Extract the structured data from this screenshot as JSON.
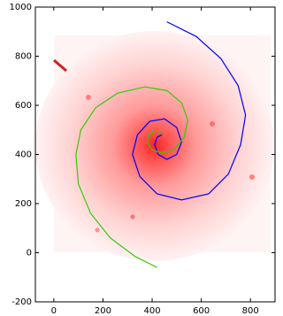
{
  "chart_data": {
    "type": "line",
    "xlim": [
      -75,
      900
    ],
    "ylim": [
      -200,
      1000
    ],
    "xticks": [
      0,
      200,
      400,
      600,
      800
    ],
    "yticks": [
      -200,
      0,
      200,
      400,
      600,
      800,
      1000
    ],
    "series": [
      {
        "color": "#0000ff",
        "x": [
          460,
          580,
          680,
          750,
          780,
          760,
          710,
          630,
          520,
          420,
          350,
          320,
          340,
          390,
          450,
          500,
          520,
          500,
          460,
          425,
          410,
          420,
          440
        ],
        "values": [
          940,
          880,
          790,
          680,
          560,
          440,
          320,
          240,
          215,
          240,
          310,
          400,
          480,
          535,
          545,
          510,
          450,
          400,
          380,
          400,
          440,
          470,
          480
        ]
      },
      {
        "color": "#33cc00",
        "x": [
          420,
          330,
          230,
          150,
          100,
          90,
          110,
          170,
          260,
          370,
          460,
          520,
          545,
          530,
          490,
          440,
          400,
          380,
          385,
          410,
          440
        ],
        "values": [
          -60,
          -15,
          60,
          160,
          280,
          400,
          500,
          590,
          650,
          675,
          660,
          610,
          540,
          470,
          420,
          405,
          420,
          450,
          480,
          495,
          490
        ]
      }
    ]
  }
}
